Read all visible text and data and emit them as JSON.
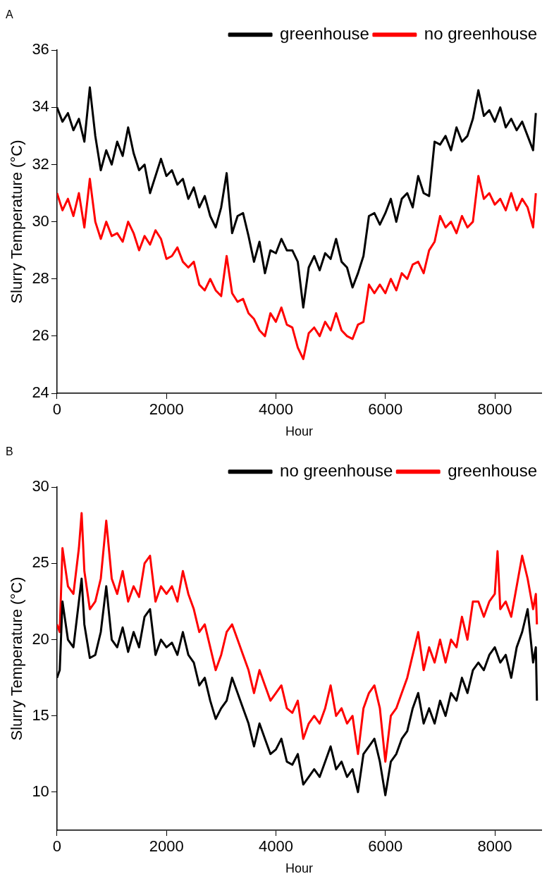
{
  "chart_data": [
    {
      "type": "line",
      "title": "A",
      "xlabel": "Hour",
      "ylabel": "Slurry Temperature (°C)",
      "xlim": [
        0,
        8850
      ],
      "xticks": [
        0,
        2000,
        4000,
        6000,
        8000
      ],
      "ylim": [
        24,
        36
      ],
      "yticks": [
        24,
        26,
        28,
        30,
        32,
        34,
        36
      ],
      "grid": false,
      "legend": "top right",
      "marker": "none",
      "line_style": "solid",
      "x": [
        0,
        100,
        200,
        300,
        400,
        500,
        600,
        700,
        800,
        900,
        1000,
        1100,
        1200,
        1300,
        1400,
        1500,
        1600,
        1700,
        1800,
        1900,
        2000,
        2100,
        2200,
        2300,
        2400,
        2500,
        2600,
        2700,
        2800,
        2900,
        3000,
        3100,
        3200,
        3300,
        3400,
        3500,
        3600,
        3700,
        3800,
        3900,
        4000,
        4100,
        4200,
        4300,
        4400,
        4500,
        4600,
        4700,
        4800,
        4900,
        5000,
        5100,
        5200,
        5300,
        5400,
        5500,
        5600,
        5700,
        5800,
        5900,
        6000,
        6100,
        6200,
        6300,
        6400,
        6500,
        6600,
        6700,
        6800,
        6900,
        7000,
        7100,
        7200,
        7300,
        7400,
        7500,
        7600,
        7700,
        7800,
        7900,
        8000,
        8100,
        8200,
        8300,
        8400,
        8500,
        8600,
        8700,
        8750
      ],
      "series": [
        {
          "name": "greenhouse",
          "color": "#000000",
          "values": [
            34.0,
            33.5,
            33.8,
            33.2,
            33.6,
            32.8,
            34.7,
            33.0,
            31.8,
            32.5,
            32.0,
            32.8,
            32.3,
            33.3,
            32.4,
            31.8,
            32.0,
            31.0,
            31.6,
            32.2,
            31.6,
            31.8,
            31.3,
            31.5,
            30.8,
            31.2,
            30.5,
            30.9,
            30.2,
            29.8,
            30.5,
            31.7,
            29.6,
            30.2,
            30.3,
            29.5,
            28.6,
            29.3,
            28.2,
            29.0,
            28.9,
            29.4,
            29.0,
            29.0,
            28.6,
            27.0,
            28.4,
            28.8,
            28.3,
            28.9,
            28.7,
            29.4,
            28.6,
            28.4,
            27.7,
            28.2,
            28.8,
            30.2,
            30.3,
            29.9,
            30.3,
            30.8,
            30.0,
            30.8,
            31.0,
            30.5,
            31.6,
            31.0,
            30.9,
            32.8,
            32.7,
            33.0,
            32.5,
            33.3,
            32.8,
            33.0,
            33.6,
            34.6,
            33.7,
            33.9,
            33.5,
            34.0,
            33.3,
            33.6,
            33.2,
            33.5,
            33.0,
            32.5,
            33.8
          ]
        },
        {
          "name": "no greenhouse",
          "color": "#ff0000",
          "values": [
            31.0,
            30.4,
            30.8,
            30.2,
            31.0,
            29.8,
            31.5,
            30.0,
            29.4,
            30.0,
            29.5,
            29.6,
            29.3,
            30.0,
            29.6,
            29.0,
            29.5,
            29.2,
            29.7,
            29.4,
            28.7,
            28.8,
            29.1,
            28.6,
            28.4,
            28.6,
            27.8,
            27.6,
            28.0,
            27.6,
            27.4,
            28.8,
            27.5,
            27.2,
            27.3,
            26.8,
            26.6,
            26.2,
            26.0,
            26.8,
            26.5,
            27.0,
            26.4,
            26.3,
            25.6,
            25.2,
            26.1,
            26.3,
            26.0,
            26.5,
            26.2,
            26.8,
            26.2,
            26.0,
            25.9,
            26.4,
            26.5,
            27.8,
            27.5,
            27.8,
            27.5,
            28.0,
            27.6,
            28.2,
            28.0,
            28.5,
            28.6,
            28.2,
            29.0,
            29.3,
            30.2,
            29.8,
            30.0,
            29.6,
            30.2,
            29.8,
            30.0,
            31.6,
            30.8,
            31.0,
            30.6,
            30.8,
            30.4,
            31.0,
            30.4,
            30.8,
            30.5,
            29.8,
            31.0
          ]
        }
      ]
    },
    {
      "type": "line",
      "title": "B",
      "xlabel": "Hour",
      "ylabel": "Slurry Temperature (°C)",
      "xlim": [
        0,
        8850
      ],
      "xticks": [
        0,
        2000,
        4000,
        6000,
        8000
      ],
      "ylim": [
        7.5,
        30
      ],
      "yticks": [
        10,
        15,
        20,
        25,
        30
      ],
      "grid": false,
      "legend": "top right",
      "marker": "none",
      "line_style": "solid",
      "series": [
        {
          "name": "no greenhouse",
          "color": "#000000",
          "x": [
            0,
            50,
            100,
            200,
            300,
            400,
            450,
            500,
            600,
            700,
            800,
            900,
            1000,
            1100,
            1200,
            1300,
            1400,
            1500,
            1600,
            1700,
            1800,
            1900,
            2000,
            2100,
            2200,
            2300,
            2400,
            2500,
            2600,
            2700,
            2800,
            2900,
            3000,
            3100,
            3200,
            3300,
            3400,
            3500,
            3600,
            3700,
            3800,
            3900,
            4000,
            4100,
            4200,
            4300,
            4400,
            4500,
            4600,
            4700,
            4800,
            4900,
            5000,
            5100,
            5200,
            5300,
            5400,
            5500,
            5600,
            5700,
            5800,
            5900,
            6000,
            6100,
            6200,
            6300,
            6400,
            6500,
            6600,
            6700,
            6800,
            6900,
            7000,
            7100,
            7200,
            7300,
            7400,
            7500,
            7600,
            7700,
            7800,
            7900,
            8000,
            8100,
            8200,
            8300,
            8400,
            8500,
            8600,
            8700,
            8750,
            8770
          ],
          "values": [
            17.5,
            18.0,
            22.5,
            20.0,
            19.5,
            22.5,
            24.0,
            21.0,
            18.8,
            19.0,
            20.5,
            23.5,
            20.0,
            19.5,
            20.8,
            19.2,
            20.5,
            19.5,
            21.5,
            22.0,
            19.0,
            20.0,
            19.5,
            19.8,
            19.0,
            20.5,
            19.0,
            18.5,
            17.0,
            17.5,
            16.0,
            14.8,
            15.5,
            16.0,
            17.5,
            16.5,
            15.5,
            14.5,
            13.0,
            14.5,
            13.5,
            12.5,
            12.8,
            13.5,
            12.0,
            11.8,
            12.5,
            10.5,
            11.0,
            11.5,
            11.0,
            12.0,
            13.0,
            11.5,
            12.0,
            11.0,
            11.5,
            10.0,
            12.5,
            13.0,
            13.5,
            12.0,
            9.8,
            12.0,
            12.5,
            13.5,
            14.0,
            15.5,
            16.5,
            14.5,
            15.5,
            14.5,
            16.0,
            15.0,
            16.5,
            16.0,
            17.5,
            16.5,
            18.0,
            18.5,
            18.0,
            19.0,
            19.5,
            18.5,
            19.0,
            17.5,
            19.5,
            20.5,
            22.0,
            18.5,
            19.5,
            16.0
          ]
        },
        {
          "name": "greenhouse",
          "color": "#ff0000",
          "x": [
            0,
            50,
            100,
            200,
            300,
            400,
            450,
            500,
            600,
            700,
            800,
            900,
            1000,
            1100,
            1200,
            1300,
            1400,
            1500,
            1600,
            1700,
            1800,
            1900,
            2000,
            2100,
            2200,
            2300,
            2400,
            2500,
            2600,
            2700,
            2800,
            2900,
            3000,
            3100,
            3200,
            3300,
            3400,
            3500,
            3600,
            3700,
            3800,
            3900,
            4000,
            4100,
            4200,
            4300,
            4400,
            4500,
            4600,
            4700,
            4800,
            4900,
            5000,
            5100,
            5200,
            5300,
            5400,
            5500,
            5600,
            5700,
            5800,
            5900,
            6000,
            6100,
            6200,
            6300,
            6400,
            6500,
            6600,
            6700,
            6800,
            6900,
            7000,
            7100,
            7200,
            7300,
            7400,
            7500,
            7600,
            7700,
            7800,
            7900,
            8000,
            8050,
            8100,
            8200,
            8300,
            8400,
            8500,
            8600,
            8700,
            8750,
            8770
          ],
          "values": [
            21.0,
            20.5,
            26.0,
            23.5,
            23.0,
            26.0,
            28.3,
            24.5,
            22.0,
            22.5,
            24.0,
            27.8,
            24.0,
            23.0,
            24.5,
            22.5,
            23.5,
            22.8,
            25.0,
            25.5,
            22.5,
            23.5,
            23.0,
            23.5,
            22.5,
            24.5,
            23.0,
            22.0,
            20.5,
            21.0,
            19.5,
            18.0,
            19.0,
            20.5,
            21.0,
            20.0,
            19.0,
            18.0,
            16.5,
            18.0,
            17.0,
            16.0,
            16.5,
            17.0,
            15.5,
            15.2,
            16.0,
            13.5,
            14.5,
            15.0,
            14.5,
            15.5,
            17.0,
            15.0,
            15.5,
            14.5,
            15.0,
            12.5,
            15.5,
            16.5,
            17.0,
            15.5,
            12.0,
            15.0,
            15.5,
            16.5,
            17.5,
            19.0,
            20.5,
            18.0,
            19.5,
            18.5,
            20.0,
            18.5,
            20.0,
            19.5,
            21.5,
            20.0,
            22.5,
            22.5,
            21.5,
            22.5,
            23.0,
            25.8,
            22.0,
            22.5,
            21.5,
            23.5,
            25.5,
            24.0,
            22.0,
            23.0,
            21.0
          ]
        }
      ]
    }
  ]
}
